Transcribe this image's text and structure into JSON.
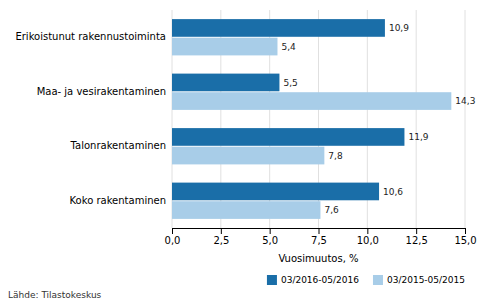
{
  "chart_data": {
    "type": "bar",
    "orientation": "horizontal",
    "categories": [
      "Erikoistunut rakennustoiminta",
      "Maa- ja vesirakentaminen",
      "Talonrakentaminen",
      "Koko rakentaminen"
    ],
    "series": [
      {
        "name": "03/2016-05/2016",
        "color": "#1a6ea8",
        "values": [
          10.9,
          5.5,
          11.9,
          10.6
        ],
        "value_labels": [
          "10,9",
          "5,5",
          "11,9",
          "10,6"
        ]
      },
      {
        "name": "03/2015-05/2015",
        "color": "#a8cde8",
        "values": [
          5.4,
          14.3,
          7.8,
          7.6
        ],
        "value_labels": [
          "5,4",
          "14,3",
          "7,8",
          "7,6"
        ]
      }
    ],
    "xlabel": "Vuosimuutos, %",
    "xlim": [
      0,
      15.0
    ],
    "xticks": [
      {
        "value": 0.0,
        "label": "0,0"
      },
      {
        "value": 2.5,
        "label": "2,5"
      },
      {
        "value": 5.0,
        "label": "5,0"
      },
      {
        "value": 7.5,
        "label": "7,5"
      },
      {
        "value": 10.0,
        "label": "10,0"
      },
      {
        "value": 12.5,
        "label": "12,5"
      },
      {
        "value": 15.0,
        "label": "15,0"
      }
    ],
    "grid": true,
    "data_labels": true,
    "legend": "lower right",
    "annotations": [
      "Lähde: Tilastokeskus"
    ]
  }
}
